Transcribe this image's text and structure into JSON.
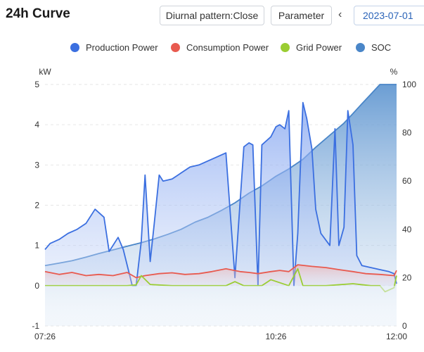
{
  "header": {
    "title": "24h Curve",
    "diurnal_button": "Diurnal pattern:Close",
    "parameter_button": "Parameter",
    "prev_icon": "chevron-left-icon",
    "date": "2023-07-01"
  },
  "legend": [
    {
      "label": "Production Power",
      "color": "#3b6fe0"
    },
    {
      "label": "Consumption Power",
      "color": "#e85a4f"
    },
    {
      "label": "Grid Power",
      "color": "#9acd32"
    },
    {
      "label": "SOC",
      "color": "#4a86c8"
    }
  ],
  "chart_data": {
    "type": "line",
    "left_axis": {
      "unit": "kW",
      "min": -1,
      "max": 5,
      "ticks": [
        "-1",
        "0",
        "1",
        "2",
        "3",
        "4",
        "5"
      ]
    },
    "right_axis": {
      "unit": "%",
      "min": 0,
      "max": 100,
      "ticks": [
        "0",
        "20",
        "40",
        "60",
        "80",
        "100"
      ]
    },
    "x_ticks": [
      "07:26",
      "10:26",
      "12:00"
    ],
    "x_range": [
      "07:26",
      "12:00"
    ],
    "series": [
      {
        "name": "Production Power",
        "axis": "left",
        "color": "#3b6fe0",
        "area": true,
        "x": [
          "07:26",
          "07:30",
          "07:37",
          "07:44",
          "07:51",
          "07:58",
          "08:05",
          "08:12",
          "08:16",
          "08:23",
          "08:27",
          "08:34",
          "08:37",
          "08:41",
          "08:44",
          "08:48",
          "08:51",
          "08:55",
          "08:58",
          "09:05",
          "09:12",
          "09:19",
          "09:26",
          "09:33",
          "09:40",
          "09:47",
          "09:54",
          "10:01",
          "10:05",
          "10:08",
          "10:12",
          "10:15",
          "10:22",
          "10:26",
          "10:29",
          "10:33",
          "10:36",
          "10:40",
          "10:43",
          "10:47",
          "10:50",
          "10:54",
          "10:57",
          "11:01",
          "11:08",
          "11:12",
          "11:15",
          "11:19",
          "11:22",
          "11:26",
          "11:29",
          "11:33",
          "11:40",
          "11:47",
          "11:54",
          "11:58",
          "12:00"
        ],
        "values": [
          0.9,
          1.05,
          1.15,
          1.3,
          1.4,
          1.55,
          1.9,
          1.7,
          0.85,
          1.2,
          0.9,
          0.0,
          0.0,
          1.1,
          2.75,
          0.6,
          1.5,
          2.75,
          2.6,
          2.65,
          2.8,
          2.95,
          3.0,
          3.1,
          3.2,
          3.3,
          0.2,
          3.45,
          3.55,
          3.5,
          0.0,
          3.5,
          3.7,
          3.95,
          4.0,
          3.9,
          4.35,
          0.0,
          1.3,
          4.55,
          4.15,
          3.4,
          1.9,
          1.3,
          1.0,
          3.9,
          1.0,
          1.45,
          4.35,
          3.5,
          0.75,
          0.5,
          0.45,
          0.4,
          0.35,
          0.3,
          0.05
        ]
      },
      {
        "name": "Consumption Power",
        "axis": "left",
        "color": "#e85a4f",
        "area": true,
        "x": [
          "07:26",
          "07:37",
          "07:47",
          "07:58",
          "08:08",
          "08:19",
          "08:30",
          "08:37",
          "08:44",
          "08:55",
          "09:05",
          "09:15",
          "09:26",
          "09:36",
          "09:47",
          "09:58",
          "10:05",
          "10:12",
          "10:22",
          "10:29",
          "10:36",
          "10:43",
          "10:54",
          "11:05",
          "11:15",
          "11:26",
          "11:36",
          "11:47",
          "11:58",
          "12:00"
        ],
        "values": [
          0.35,
          0.28,
          0.33,
          0.25,
          0.28,
          0.25,
          0.33,
          0.2,
          0.25,
          0.3,
          0.32,
          0.28,
          0.3,
          0.35,
          0.42,
          0.35,
          0.33,
          0.3,
          0.35,
          0.38,
          0.35,
          0.52,
          0.48,
          0.45,
          0.4,
          0.35,
          0.3,
          0.28,
          0.25,
          0.38
        ]
      },
      {
        "name": "Grid Power",
        "axis": "left",
        "color": "#9acd32",
        "area": false,
        "x": [
          "07:26",
          "07:47",
          "08:08",
          "08:30",
          "08:37",
          "08:41",
          "08:48",
          "09:05",
          "09:26",
          "09:47",
          "09:54",
          "10:01",
          "10:15",
          "10:22",
          "10:36",
          "10:43",
          "10:47",
          "11:05",
          "11:26",
          "11:40",
          "11:47",
          "11:51",
          "11:58",
          "12:00"
        ],
        "values": [
          0.0,
          0.0,
          0.0,
          0.0,
          0.02,
          0.25,
          0.03,
          0.0,
          0.0,
          0.0,
          0.1,
          0.0,
          0.0,
          0.15,
          0.0,
          0.42,
          0.0,
          0.0,
          0.05,
          0.0,
          0.0,
          -0.15,
          -0.05,
          0.25
        ]
      },
      {
        "name": "SOC",
        "axis": "right",
        "color": "#4a86c8",
        "area": true,
        "x": [
          "07:26",
          "07:37",
          "07:47",
          "07:58",
          "08:08",
          "08:19",
          "08:30",
          "08:41",
          "08:51",
          "09:02",
          "09:12",
          "09:23",
          "09:33",
          "09:44",
          "09:54",
          "10:05",
          "10:15",
          "10:26",
          "10:36",
          "10:47",
          "10:57",
          "11:08",
          "11:19",
          "11:26",
          "11:33",
          "11:40",
          "11:47",
          "11:54",
          "12:00"
        ],
        "values": [
          25,
          26,
          27,
          28.5,
          30,
          31.5,
          33,
          34.5,
          36,
          38,
          40,
          43,
          45,
          48,
          51,
          55,
          58,
          62,
          65,
          69,
          74,
          79,
          84,
          88,
          92,
          96,
          100,
          100,
          100
        ]
      }
    ]
  }
}
